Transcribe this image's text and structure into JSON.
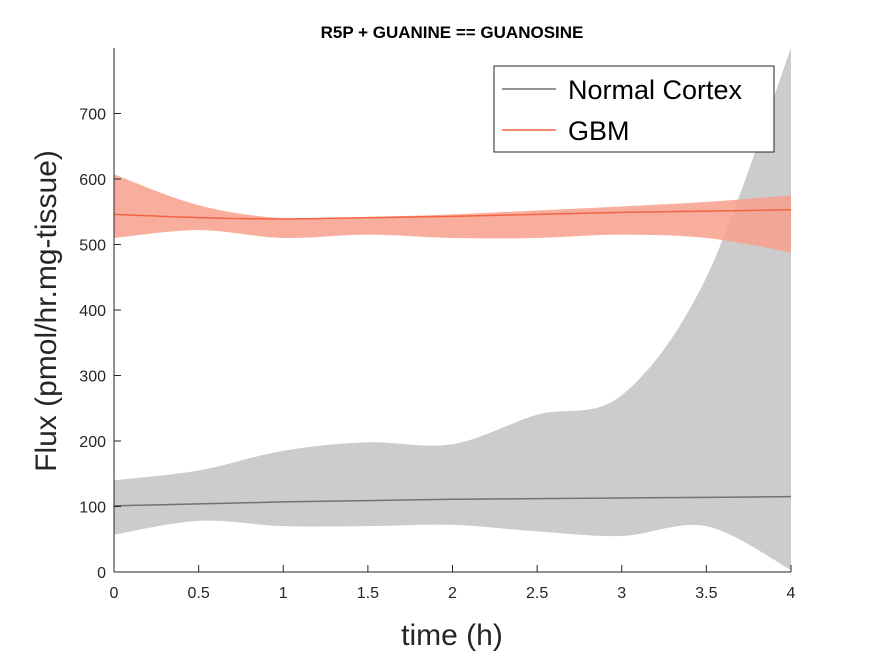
{
  "chart_data": {
    "type": "line",
    "title": "R5P + GUANINE == GUANOSINE",
    "xlabel": "time (h)",
    "ylabel": "Flux (pmol/hr.mg-tissue)",
    "xlim": [
      0,
      4
    ],
    "ylim": [
      0,
      800
    ],
    "xticks": [
      "0",
      "0.5",
      "1",
      "1.5",
      "2",
      "2.5",
      "3",
      "3.5",
      "4"
    ],
    "yticks": [
      "0",
      "100",
      "200",
      "300",
      "400",
      "500",
      "600",
      "700"
    ],
    "grid": false,
    "legend_position": "top-right",
    "series": [
      {
        "name": "Normal Cortex",
        "color": "#6e7373",
        "band_color": "#cccccc",
        "x": [
          0,
          0.5,
          1,
          1.5,
          2,
          2.5,
          3,
          3.5,
          4
        ],
        "y": [
          101,
          104,
          107,
          109,
          111,
          112,
          113,
          114,
          115
        ],
        "upper": [
          140,
          155,
          185,
          198,
          195,
          240,
          270,
          450,
          800
        ],
        "lower": [
          57,
          78,
          70,
          70,
          72,
          62,
          55,
          70,
          3
        ]
      },
      {
        "name": "GBM",
        "color": "#f26444",
        "band_color": "#f8a08c",
        "x": [
          0,
          0.5,
          1,
          1.5,
          2,
          2.5,
          3,
          3.5,
          4
        ],
        "y": [
          546,
          541,
          539,
          541,
          543,
          546,
          549,
          551,
          553
        ],
        "upper": [
          607,
          560,
          540,
          542,
          546,
          552,
          558,
          565,
          575
        ],
        "lower": [
          510,
          522,
          510,
          515,
          510,
          510,
          515,
          510,
          488
        ]
      }
    ]
  }
}
